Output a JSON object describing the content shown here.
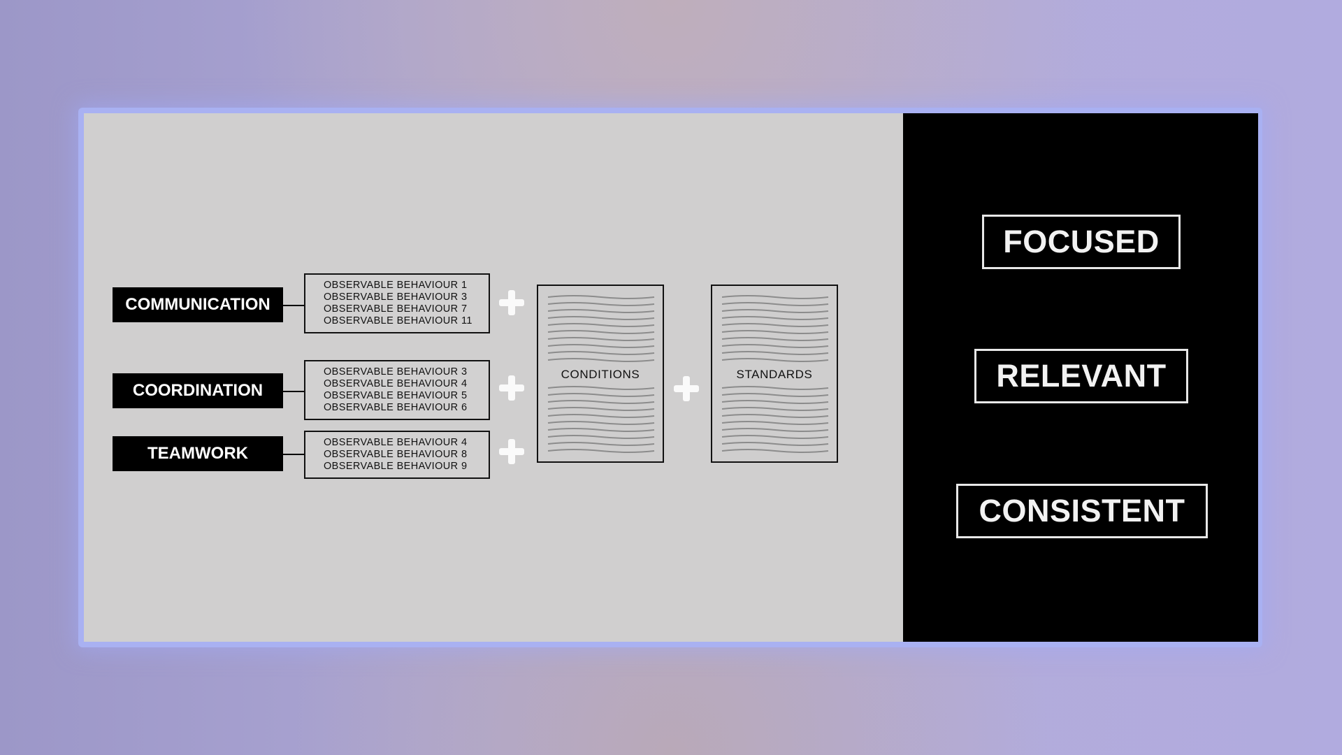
{
  "diagram": {
    "categories": [
      {
        "label": "COMMUNICATION",
        "behaviours": [
          "OBSERVABLE BEHAVIOUR 1",
          "OBSERVABLE BEHAVIOUR 3",
          "OBSERVABLE BEHAVIOUR 7",
          "OBSERVABLE BEHAVIOUR 11"
        ]
      },
      {
        "label": "COORDINATION",
        "behaviours": [
          "OBSERVABLE BEHAVIOUR 3",
          "OBSERVABLE BEHAVIOUR 4",
          "OBSERVABLE BEHAVIOUR 5",
          "OBSERVABLE BEHAVIOUR 6"
        ]
      },
      {
        "label": "TEAMWORK",
        "behaviours": [
          "OBSERVABLE BEHAVIOUR 4",
          "OBSERVABLE BEHAVIOUR 8",
          "OBSERVABLE BEHAVIOUR 9"
        ]
      }
    ],
    "conditions_label": "CONDITIONS",
    "standards_label": "STANDARDS"
  },
  "panel": {
    "words": [
      "FOCUSED",
      "RELEVANT",
      "CONSISTENT"
    ]
  },
  "colors": {
    "background_left": "#d0cfcf",
    "background_right": "#000000",
    "frame_glow": "#a9b1f2"
  }
}
